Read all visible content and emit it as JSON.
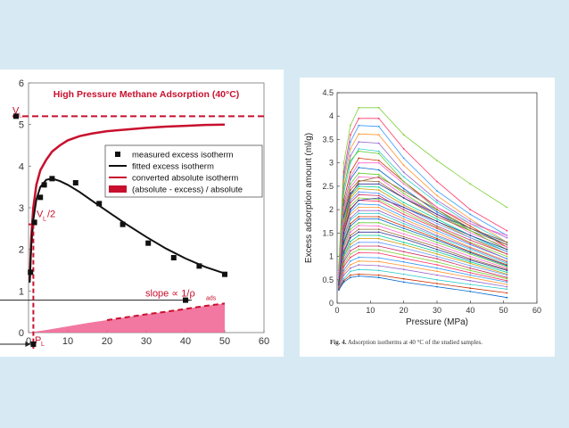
{
  "left_chart_extras": {
    "vl_label": "V",
    "vl_sub": "L",
    "vl_half": "V",
    "vl_half_sub": "L",
    "vl_half_suffix": "/2",
    "pl_label": "P",
    "pl_sub": "L",
    "slope_text": "slope ∝ 1/ρ",
    "slope_sub": "ads"
  },
  "right_caption": {
    "prefix": "Fig. 4.",
    "text": "Adsorption isotherms at 40 °C of the studied samples."
  },
  "colors": {
    "red": "#c8102e",
    "black": "#111111",
    "pink_fill": "#f06090"
  },
  "chart_data": [
    {
      "type": "line",
      "title": "High Pressure Methane Adsorption (40°C)",
      "xlabel": "",
      "ylabel": "",
      "xlim": [
        0,
        60
      ],
      "ylim": [
        0,
        6
      ],
      "xticks": [
        "0",
        "10",
        "20",
        "30",
        "40",
        "50",
        "60"
      ],
      "yticks": [
        "0",
        "1",
        "2",
        "3",
        "4",
        "5",
        "6"
      ],
      "legend": [
        "measured excess isotherm",
        "fitted excess isotherm",
        "converted absolute isotherm",
        "(absolute - excess) / absolute"
      ],
      "legend_position": "top-right",
      "langmuir_volume": 5.2,
      "langmuir_pressure": 1.0,
      "series": [
        {
          "name": "measured excess isotherm",
          "x": [
            0.5,
            1.5,
            3,
            4,
            6,
            12,
            18,
            24,
            30.5,
            37,
            43.5,
            50
          ],
          "y": [
            1.45,
            2.65,
            3.25,
            3.55,
            3.7,
            3.6,
            3.1,
            2.6,
            2.15,
            1.8,
            1.6,
            1.4
          ]
        },
        {
          "name": "fitted excess isotherm",
          "x": [
            0.3,
            0.7,
            1.2,
            2,
            3,
            4.5,
            6,
            8,
            10,
            13,
            16,
            20,
            25,
            30,
            35,
            40,
            45,
            50
          ],
          "y": [
            1.2,
            2.1,
            2.7,
            3.2,
            3.5,
            3.67,
            3.7,
            3.64,
            3.55,
            3.38,
            3.18,
            2.92,
            2.6,
            2.3,
            2.02,
            1.78,
            1.58,
            1.42
          ]
        },
        {
          "name": "converted absolute isotherm",
          "x": [
            0.3,
            0.7,
            1.2,
            2,
            3,
            4.5,
            6,
            8,
            10,
            13,
            16,
            20,
            25,
            30,
            35,
            40,
            45,
            50
          ],
          "y": [
            1.25,
            2.3,
            3.0,
            3.55,
            3.9,
            4.15,
            4.35,
            4.5,
            4.62,
            4.72,
            4.78,
            4.84,
            4.88,
            4.92,
            4.95,
            4.97,
            4.99,
            5.0
          ]
        },
        {
          "name": "(absolute - excess) / absolute",
          "x": [
            0,
            5,
            10,
            15,
            20,
            25,
            30,
            35,
            40,
            45,
            50
          ],
          "y": [
            0.0,
            0.07,
            0.15,
            0.23,
            0.3,
            0.37,
            0.44,
            0.5,
            0.57,
            0.64,
            0.7
          ]
        }
      ]
    },
    {
      "type": "line",
      "title": "",
      "xlabel": "Pressure (MPa)",
      "ylabel": "Excess adsorption amount (ml/g)",
      "xlim": [
        0,
        60
      ],
      "ylim": [
        0,
        4.5
      ],
      "xticks": [
        "0",
        "10",
        "20",
        "30",
        "40",
        "50",
        "60"
      ],
      "yticks": [
        "0",
        "0.5",
        "1",
        "1.5",
        "2",
        "2.5",
        "3",
        "3.5",
        "4",
        "4.5"
      ],
      "x": [
        0.5,
        2,
        4,
        6.5,
        12.5,
        20,
        30,
        40,
        51
      ],
      "series": [
        {
          "name": "s1",
          "values": [
            0.8,
            3.0,
            3.8,
            4.18,
            4.18,
            3.6,
            3.05,
            2.55,
            2.05
          ]
        },
        {
          "name": "s2",
          "values": [
            0.7,
            2.8,
            3.6,
            3.95,
            3.95,
            3.3,
            2.6,
            2.0,
            1.55
          ]
        },
        {
          "name": "s3",
          "values": [
            0.7,
            2.7,
            3.45,
            3.8,
            3.78,
            3.1,
            2.4,
            1.9,
            1.45
          ]
        },
        {
          "name": "s4",
          "values": [
            0.65,
            2.6,
            3.3,
            3.62,
            3.6,
            2.95,
            2.3,
            1.8,
            1.3
          ]
        },
        {
          "name": "s5",
          "values": [
            0.6,
            2.45,
            3.15,
            3.45,
            3.42,
            2.8,
            2.2,
            1.75,
            1.4
          ]
        },
        {
          "name": "s6",
          "values": [
            0.6,
            2.35,
            3.0,
            3.3,
            3.25,
            2.7,
            2.15,
            1.7,
            1.3
          ]
        },
        {
          "name": "s7",
          "values": [
            0.55,
            2.2,
            2.8,
            3.1,
            3.05,
            2.6,
            2.05,
            1.65,
            1.2
          ]
        },
        {
          "name": "s8",
          "values": [
            0.55,
            2.1,
            2.65,
            2.9,
            2.85,
            2.45,
            1.95,
            1.6,
            1.25
          ]
        },
        {
          "name": "s9",
          "values": [
            0.5,
            2.0,
            2.55,
            2.78,
            2.75,
            2.35,
            1.9,
            1.55,
            1.15
          ]
        },
        {
          "name": "s10",
          "values": [
            0.5,
            1.95,
            2.48,
            2.7,
            2.68,
            2.3,
            1.9,
            1.5,
            1.2
          ]
        },
        {
          "name": "s11",
          "values": [
            0.5,
            1.9,
            2.42,
            2.62,
            2.6,
            2.25,
            1.85,
            1.55,
            1.25
          ]
        },
        {
          "name": "s12",
          "values": [
            0.48,
            1.85,
            2.35,
            2.55,
            2.55,
            2.25,
            1.9,
            1.6,
            1.3
          ]
        },
        {
          "name": "s13",
          "values": [
            0.48,
            1.8,
            2.3,
            2.5,
            2.48,
            2.15,
            1.8,
            1.45,
            1.1
          ]
        },
        {
          "name": "s14",
          "values": [
            0.46,
            1.75,
            2.25,
            2.45,
            2.42,
            2.1,
            1.75,
            1.4,
            1.05
          ]
        },
        {
          "name": "s15",
          "values": [
            0.45,
            1.7,
            2.2,
            2.38,
            2.35,
            2.05,
            1.7,
            1.4,
            1.1
          ]
        },
        {
          "name": "s16",
          "values": [
            0.45,
            1.65,
            2.15,
            2.32,
            2.3,
            2.0,
            1.65,
            1.35,
            1.05
          ]
        },
        {
          "name": "s17",
          "values": [
            0.44,
            1.6,
            2.08,
            2.25,
            2.22,
            1.95,
            1.62,
            1.3,
            1.0
          ]
        },
        {
          "name": "s18",
          "values": [
            0.44,
            1.58,
            2.02,
            2.2,
            2.18,
            1.9,
            1.6,
            1.28,
            0.95
          ]
        },
        {
          "name": "s19",
          "values": [
            0.42,
            1.52,
            1.95,
            2.12,
            2.1,
            1.85,
            1.55,
            1.25,
            0.95
          ]
        },
        {
          "name": "s20",
          "values": [
            0.42,
            1.48,
            1.9,
            2.05,
            2.05,
            1.8,
            1.5,
            1.2,
            0.9
          ]
        },
        {
          "name": "s21",
          "values": [
            0.4,
            1.42,
            1.82,
            1.98,
            1.98,
            1.75,
            1.45,
            1.18,
            0.88
          ]
        },
        {
          "name": "s22",
          "values": [
            0.4,
            1.38,
            1.78,
            1.92,
            1.92,
            1.7,
            1.42,
            1.15,
            0.85
          ]
        },
        {
          "name": "s23",
          "values": [
            0.38,
            1.32,
            1.7,
            1.85,
            1.85,
            1.65,
            1.38,
            1.1,
            0.82
          ]
        },
        {
          "name": "s24",
          "values": [
            0.38,
            1.28,
            1.65,
            1.8,
            1.8,
            1.6,
            1.35,
            1.08,
            0.8
          ]
        },
        {
          "name": "s25",
          "values": [
            0.36,
            1.22,
            1.58,
            1.72,
            1.72,
            1.55,
            1.3,
            1.05,
            0.78
          ]
        },
        {
          "name": "s26",
          "values": [
            0.36,
            1.18,
            1.52,
            1.66,
            1.65,
            1.48,
            1.25,
            1.0,
            0.75
          ]
        },
        {
          "name": "s27",
          "values": [
            0.35,
            1.12,
            1.45,
            1.58,
            1.58,
            1.42,
            1.2,
            0.95,
            0.72
          ]
        },
        {
          "name": "s28",
          "values": [
            0.35,
            1.08,
            1.4,
            1.52,
            1.52,
            1.38,
            1.15,
            0.92,
            0.7
          ]
        },
        {
          "name": "s29",
          "values": [
            0.34,
            1.02,
            1.32,
            1.45,
            1.45,
            1.3,
            1.1,
            0.88,
            0.66
          ]
        },
        {
          "name": "s30",
          "values": [
            0.34,
            0.98,
            1.26,
            1.38,
            1.38,
            1.25,
            1.05,
            0.85,
            0.62
          ]
        },
        {
          "name": "s31",
          "values": [
            0.33,
            0.92,
            1.2,
            1.3,
            1.3,
            1.18,
            1.0,
            0.8,
            0.6
          ]
        },
        {
          "name": "s32",
          "values": [
            0.33,
            0.88,
            1.12,
            1.22,
            1.22,
            1.1,
            0.95,
            0.75,
            0.55
          ]
        },
        {
          "name": "s33",
          "values": [
            0.32,
            0.82,
            1.05,
            1.15,
            1.14,
            1.03,
            0.88,
            0.7,
            0.52
          ]
        },
        {
          "name": "s34",
          "values": [
            0.32,
            0.78,
            0.98,
            1.08,
            1.07,
            0.96,
            0.82,
            0.65,
            0.48
          ]
        },
        {
          "name": "s35",
          "values": [
            0.31,
            0.7,
            0.9,
            0.98,
            0.97,
            0.88,
            0.75,
            0.6,
            0.45
          ]
        },
        {
          "name": "s36",
          "values": [
            0.3,
            0.65,
            0.82,
            0.9,
            0.89,
            0.8,
            0.68,
            0.55,
            0.4
          ]
        },
        {
          "name": "s37",
          "values": [
            0.3,
            0.6,
            0.75,
            0.82,
            0.8,
            0.72,
            0.6,
            0.48,
            0.35
          ]
        },
        {
          "name": "s38",
          "values": [
            0.3,
            0.52,
            0.68,
            0.72,
            0.7,
            0.62,
            0.5,
            0.4,
            0.3
          ]
        },
        {
          "name": "s39",
          "values": [
            0.3,
            0.48,
            0.6,
            0.62,
            0.6,
            0.52,
            0.42,
            0.32,
            0.22
          ]
        },
        {
          "name": "s40",
          "values": [
            0.28,
            0.45,
            0.55,
            0.58,
            0.55,
            0.45,
            0.35,
            0.25,
            0.12
          ]
        },
        {
          "name": "s41",
          "values": [
            0.75,
            2.5,
            3.05,
            3.25,
            3.2,
            2.6,
            2.0,
            1.55,
            1.15
          ]
        },
        {
          "name": "s42",
          "values": [
            0.55,
            2.05,
            2.7,
            3.0,
            3.0,
            2.55,
            2.05,
            1.7,
            1.45
          ]
        },
        {
          "name": "s43",
          "values": [
            0.45,
            1.6,
            2.3,
            2.6,
            2.7,
            2.4,
            2.0,
            1.6,
            1.3
          ]
        },
        {
          "name": "s44",
          "values": [
            0.4,
            1.5,
            2.0,
            2.2,
            2.25,
            2.05,
            1.75,
            1.45,
            1.15
          ]
        }
      ],
      "caption": "Fig. 4. Adsorption isotherms at 40 °C of the studied samples."
    }
  ]
}
